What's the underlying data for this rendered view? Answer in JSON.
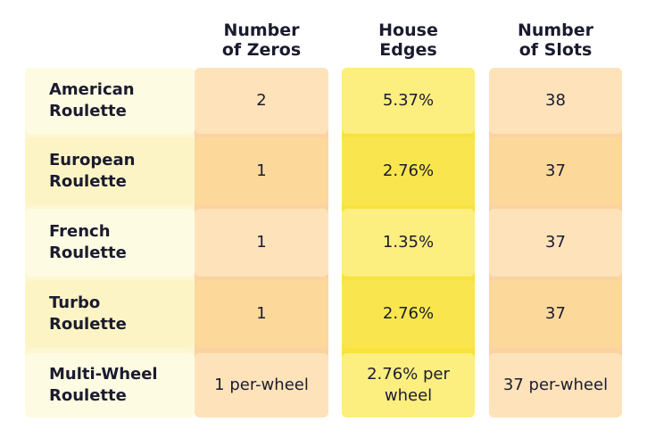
{
  "table": {
    "columns": [
      "Number\nof Zeros",
      "House\nEdges",
      "Number\nof Slots"
    ],
    "rows": [
      [
        "American\nRoulette",
        "2",
        "5.37%",
        "38"
      ],
      [
        "European\nRoulette",
        "1",
        "2.76%",
        "37"
      ],
      [
        "French\nRoulette",
        "1",
        "1.35%",
        "37"
      ],
      [
        "Turbo\nRoulette",
        "1",
        "2.76%",
        "37"
      ],
      [
        "Multi-Wheel\nRoulette",
        "1 per-wheel",
        "2.76% per\nwheel",
        "37 per-wheel"
      ]
    ]
  }
}
